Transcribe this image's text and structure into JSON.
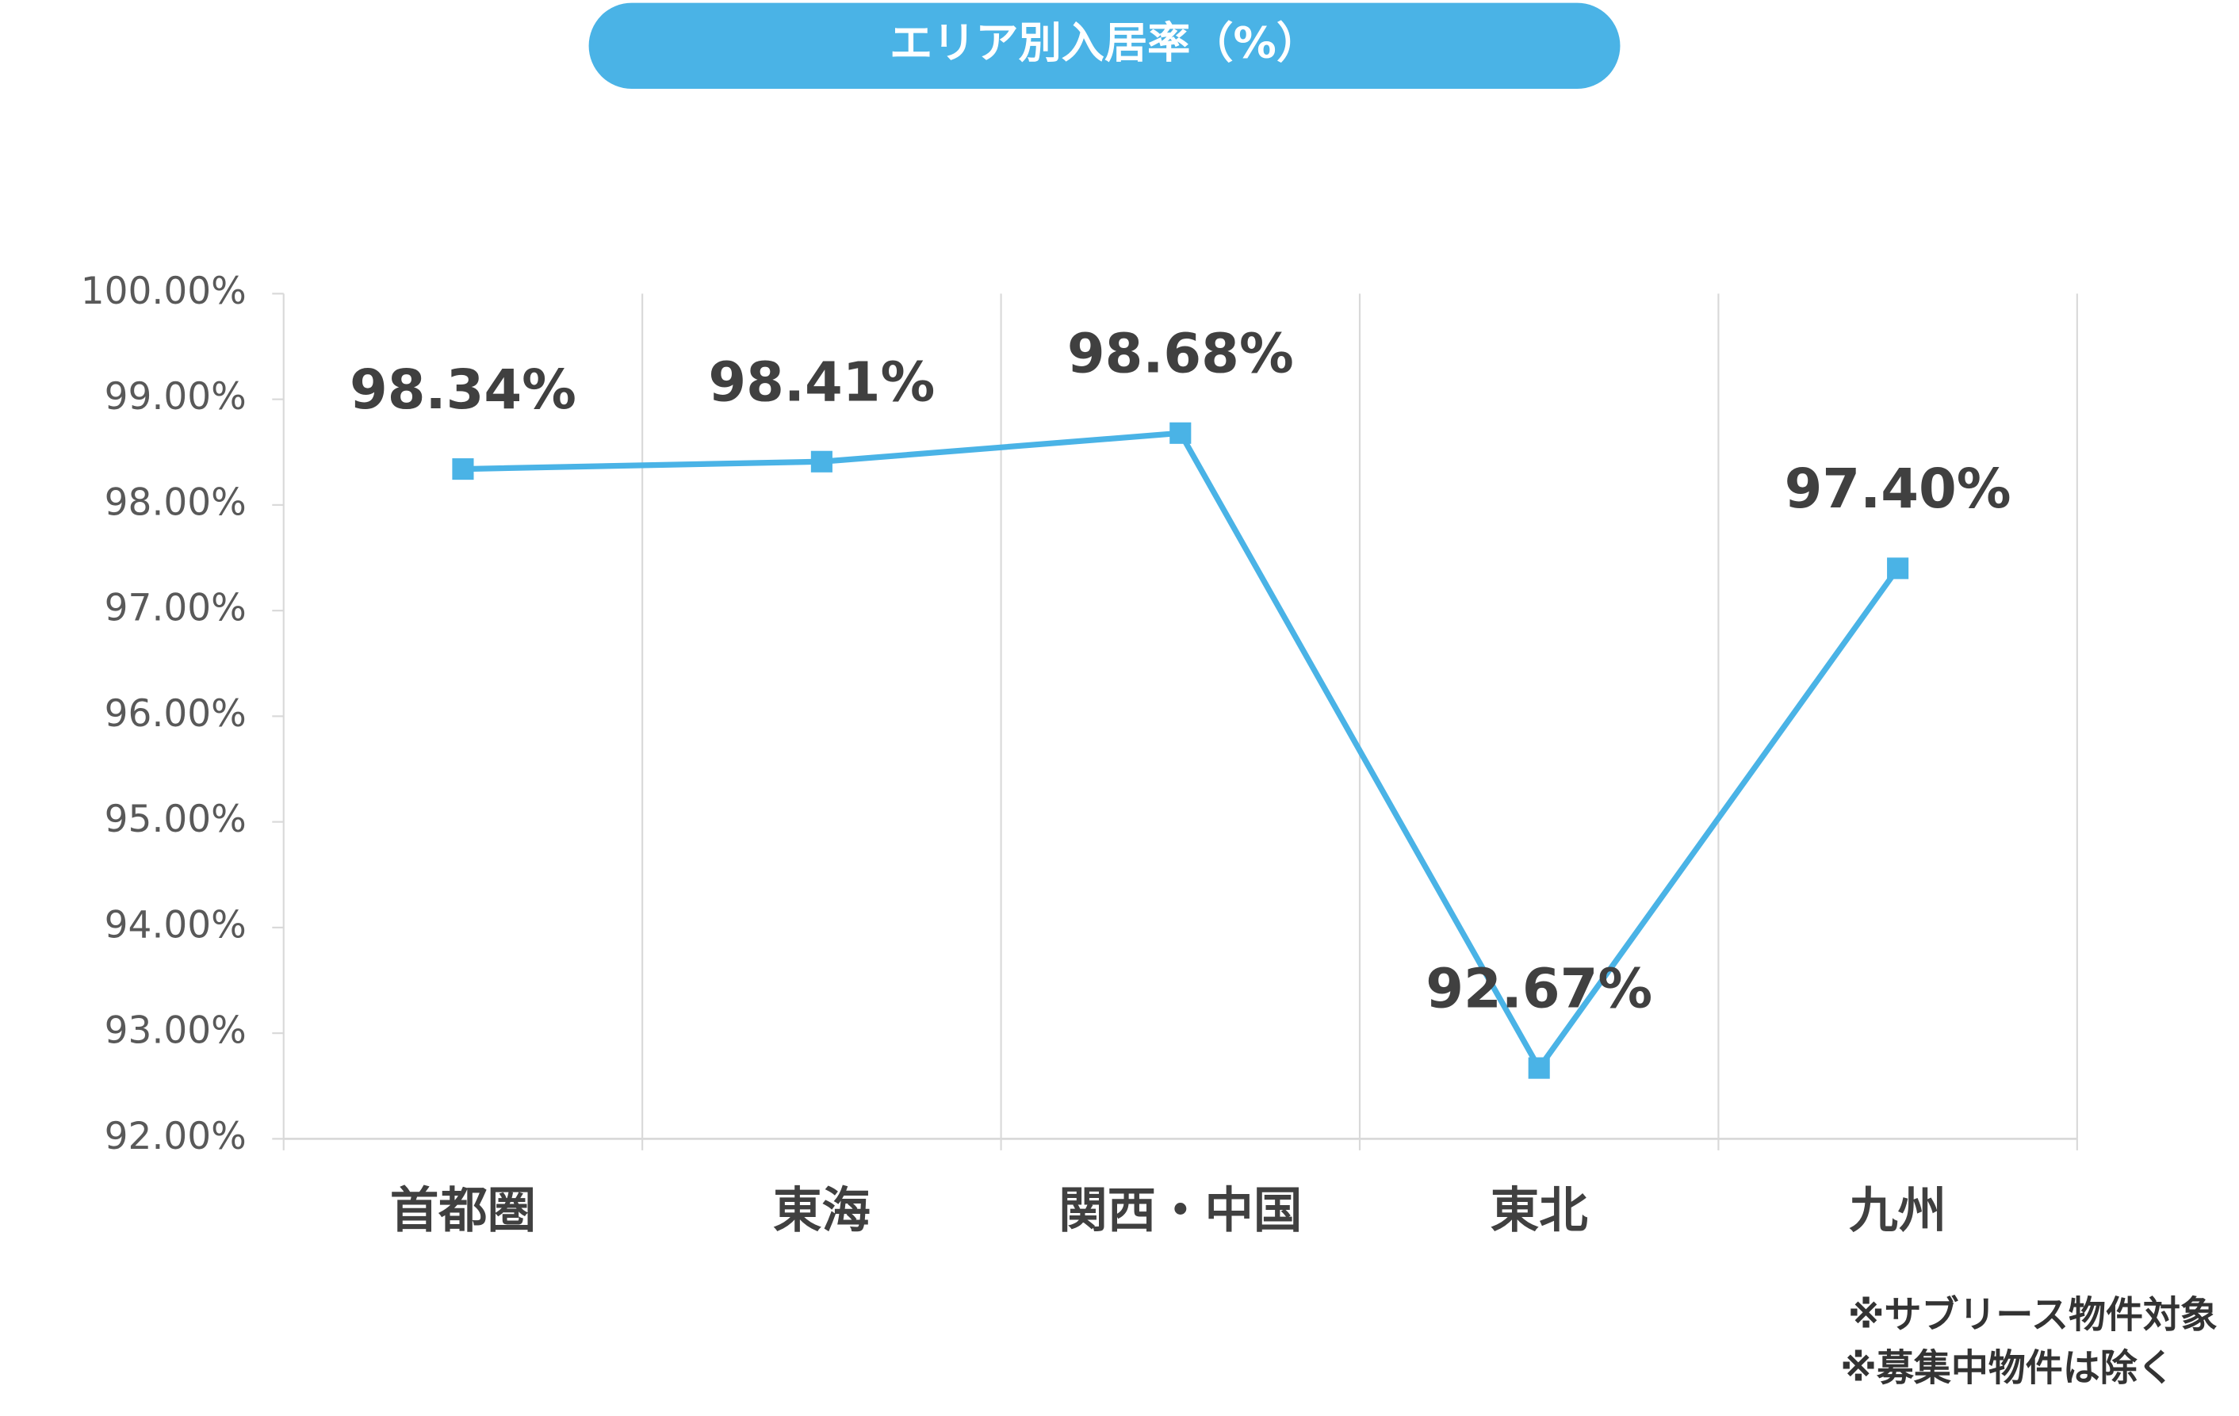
{
  "chart_data": {
    "type": "line",
    "title": "エリア別入居率（%）",
    "categories": [
      "首都圏",
      "東海",
      "関西・中国",
      "東北",
      "九州"
    ],
    "series": [
      {
        "name": "入居率",
        "color": "#4ab3e6",
        "values": [
          98.34,
          98.41,
          98.68,
          92.67,
          97.4
        ],
        "value_labels": [
          "98.34%",
          "98.41%",
          "98.68%",
          "92.67%",
          "97.40%"
        ]
      }
    ],
    "ylim": [
      92,
      100
    ],
    "yticks": [
      {
        "value": 92,
        "label": "92.00%"
      },
      {
        "value": 93,
        "label": "93.00%"
      },
      {
        "value": 94,
        "label": "94.00%"
      },
      {
        "value": 95,
        "label": "95.00%"
      },
      {
        "value": 96,
        "label": "96.00%"
      },
      {
        "value": 97,
        "label": "97.00%"
      },
      {
        "value": 98,
        "label": "98.00%"
      },
      {
        "value": 99,
        "label": "99.00%"
      },
      {
        "value": 100,
        "label": "100.00%"
      }
    ],
    "grid": true,
    "notes": [
      "※サブリース物件対象",
      "※募集中物件は除く"
    ]
  }
}
